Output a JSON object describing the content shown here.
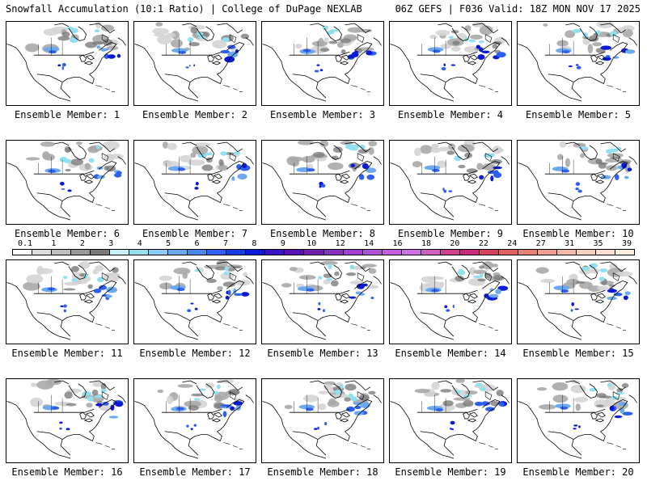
{
  "header": {
    "title_left": "Snowfall Accumulation (10:1 Ratio) | College of DuPage NEXLAB",
    "title_right": "06Z GEFS | F036 Valid: 18Z MON NOV 17 2025"
  },
  "panel_label_prefix": "Ensemble Member: ",
  "members": [
    {
      "label": "Ensemble Member: 1"
    },
    {
      "label": "Ensemble Member: 2"
    },
    {
      "label": "Ensemble Member: 3"
    },
    {
      "label": "Ensemble Member: 4"
    },
    {
      "label": "Ensemble Member: 5"
    },
    {
      "label": "Ensemble Member: 6"
    },
    {
      "label": "Ensemble Member: 7"
    },
    {
      "label": "Ensemble Member: 8"
    },
    {
      "label": "Ensemble Member: 9"
    },
    {
      "label": "Ensemble Member: 10"
    },
    {
      "label": "Ensemble Member: 11"
    },
    {
      "label": "Ensemble Member: 12"
    },
    {
      "label": "Ensemble Member: 13"
    },
    {
      "label": "Ensemble Member: 14"
    },
    {
      "label": "Ensemble Member: 15"
    },
    {
      "label": "Ensemble Member: 16"
    },
    {
      "label": "Ensemble Member: 17"
    },
    {
      "label": "Ensemble Member: 18"
    },
    {
      "label": "Ensemble Member: 19"
    },
    {
      "label": "Ensemble Member: 20"
    }
  ],
  "colorbar": {
    "tick_labels": [
      "0.1",
      "1",
      "2",
      "3",
      "4",
      "5",
      "6",
      "7",
      "8",
      "9",
      "10",
      "12",
      "14",
      "16",
      "18",
      "20",
      "22",
      "24",
      "27",
      "31",
      "35",
      "39"
    ],
    "colors": [
      "#ffffff",
      "#dcdcdc",
      "#bebebe",
      "#9a9a9a",
      "#7a7a7a",
      "#c8f0f8",
      "#96e0f0",
      "#8ec8f4",
      "#6aa8f0",
      "#4a88ec",
      "#2e60f0",
      "#1a3ae8",
      "#0a18d8",
      "#3a10c8",
      "#5a10b8",
      "#7220b0",
      "#8a30c0",
      "#a040d0",
      "#b050d8",
      "#c060e0",
      "#d070e8",
      "#d060c0",
      "#d04090",
      "#c82878",
      "#d84060",
      "#e06060",
      "#e88070",
      "#f0a090",
      "#f4b8a8",
      "#f8d0c0",
      "#fce0d0",
      "#fff0e0"
    ]
  },
  "map_colors": {
    "light_snow": "#d4d4d4",
    "mid_snow": "#a8a8a8",
    "heavy_gray": "#7c7c7c",
    "cyan": "#8fe0f0",
    "light_blue": "#6aa8f0",
    "blue": "#2e60f0",
    "dark_blue": "#0a18d8"
  }
}
